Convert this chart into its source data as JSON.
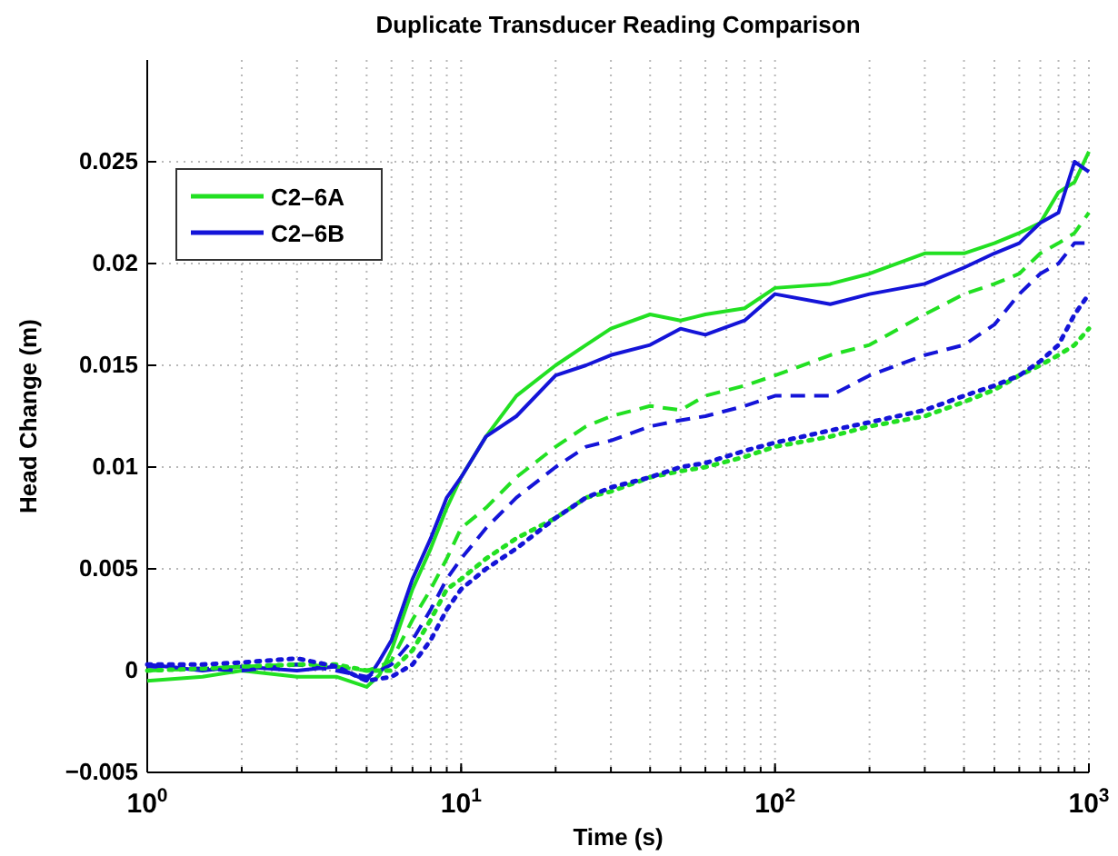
{
  "chart_data": {
    "type": "line",
    "title": "Duplicate Transducer Reading Comparison",
    "xlabel": "Time (s)",
    "ylabel": "Head Change (m)",
    "log": "x",
    "grid": true,
    "legend": "top left",
    "x": [
      1,
      1.5,
      2,
      3,
      4,
      5,
      5.5,
      6,
      7,
      8,
      9,
      10,
      12,
      15,
      20,
      25,
      30,
      40,
      50,
      60,
      80,
      100,
      150,
      200,
      300,
      400,
      500,
      600,
      700,
      800,
      900,
      1000
    ],
    "xlim": [
      1,
      1000
    ],
    "xticks": [
      {
        "value": 1,
        "label": "10$^{0}$"
      },
      {
        "value": 10,
        "label": "10$^{1}$"
      },
      {
        "value": 100,
        "label": "10$^{2}$"
      },
      {
        "value": 1000,
        "label": "10$^{3}$"
      }
    ],
    "ylim": [
      -0.005,
      0.03
    ],
    "yticks": [
      -0.005,
      0,
      0.005,
      0.01,
      0.015,
      0.02,
      0.025
    ],
    "series": [
      {
        "name": "C2–6A",
        "color": "#22e022",
        "line_style": "solid",
        "values": [
          -0.0005,
          -0.0003,
          0,
          -0.0003,
          -0.0003,
          -0.0008,
          -0.0002,
          0.001,
          0.004,
          0.006,
          0.008,
          0.0095,
          0.0115,
          0.0135,
          0.015,
          0.016,
          0.0168,
          0.0175,
          0.0172,
          0.0175,
          0.0178,
          0.0188,
          0.019,
          0.0195,
          0.0205,
          0.0205,
          0.021,
          0.0215,
          0.022,
          0.0235,
          0.024,
          0.0255
        ]
      },
      {
        "name": "C2–6B",
        "color": "#1414d8",
        "line_style": "solid",
        "values": [
          0.0003,
          0,
          0.0002,
          0,
          0.0002,
          -0.0005,
          0.0005,
          0.0015,
          0.0045,
          0.0065,
          0.0085,
          0.0095,
          0.0115,
          0.0125,
          0.0145,
          0.015,
          0.0155,
          0.016,
          0.0168,
          0.0165,
          0.0172,
          0.0185,
          0.018,
          0.0185,
          0.019,
          0.0198,
          0.0205,
          0.021,
          0.022,
          0.0225,
          0.025,
          0.0245
        ]
      },
      {
        "color": "#22e022",
        "line_style": "dashed",
        "values": [
          0,
          0.0001,
          0.0002,
          0.0003,
          0.0002,
          0,
          0.0002,
          0.0005,
          0.0025,
          0.004,
          0.0055,
          0.007,
          0.008,
          0.0095,
          0.011,
          0.012,
          0.0125,
          0.013,
          0.0128,
          0.0135,
          0.014,
          0.0145,
          0.0155,
          0.016,
          0.0175,
          0.0185,
          0.019,
          0.0195,
          0.0205,
          0.021,
          0.0215,
          0.0225
        ]
      },
      {
        "color": "#1414d8",
        "line_style": "dashed",
        "values": [
          0.0002,
          0.0001,
          0,
          0.0003,
          0,
          -0.0003,
          0,
          0.0003,
          0.0015,
          0.003,
          0.0045,
          0.0055,
          0.007,
          0.0085,
          0.01,
          0.011,
          0.0113,
          0.012,
          0.0123,
          0.0125,
          0.013,
          0.0135,
          0.0135,
          0.0145,
          0.0155,
          0.016,
          0.017,
          0.0185,
          0.0195,
          0.02,
          0.021,
          0.021
        ]
      },
      {
        "color": "#22e022",
        "line_style": "dotted",
        "values": [
          0,
          0.0001,
          0.0002,
          0.0003,
          0.0003,
          0,
          0,
          0,
          0.001,
          0.0025,
          0.004,
          0.0045,
          0.0055,
          0.0065,
          0.0075,
          0.0085,
          0.0088,
          0.0095,
          0.0098,
          0.01,
          0.0105,
          0.011,
          0.0115,
          0.012,
          0.0125,
          0.0132,
          0.0138,
          0.0145,
          0.015,
          0.0155,
          0.016,
          0.0168
        ]
      },
      {
        "color": "#1414d8",
        "line_style": "dotted",
        "values": [
          0.0003,
          0.0003,
          0.0004,
          0.0006,
          0.0002,
          -0.0005,
          -0.0004,
          -0.0003,
          0.0003,
          0.0015,
          0.003,
          0.004,
          0.005,
          0.006,
          0.0075,
          0.0085,
          0.009,
          0.0095,
          0.01,
          0.0102,
          0.0108,
          0.0112,
          0.0118,
          0.0122,
          0.0128,
          0.0135,
          0.014,
          0.0145,
          0.0152,
          0.016,
          0.0175,
          0.0185
        ]
      }
    ]
  }
}
